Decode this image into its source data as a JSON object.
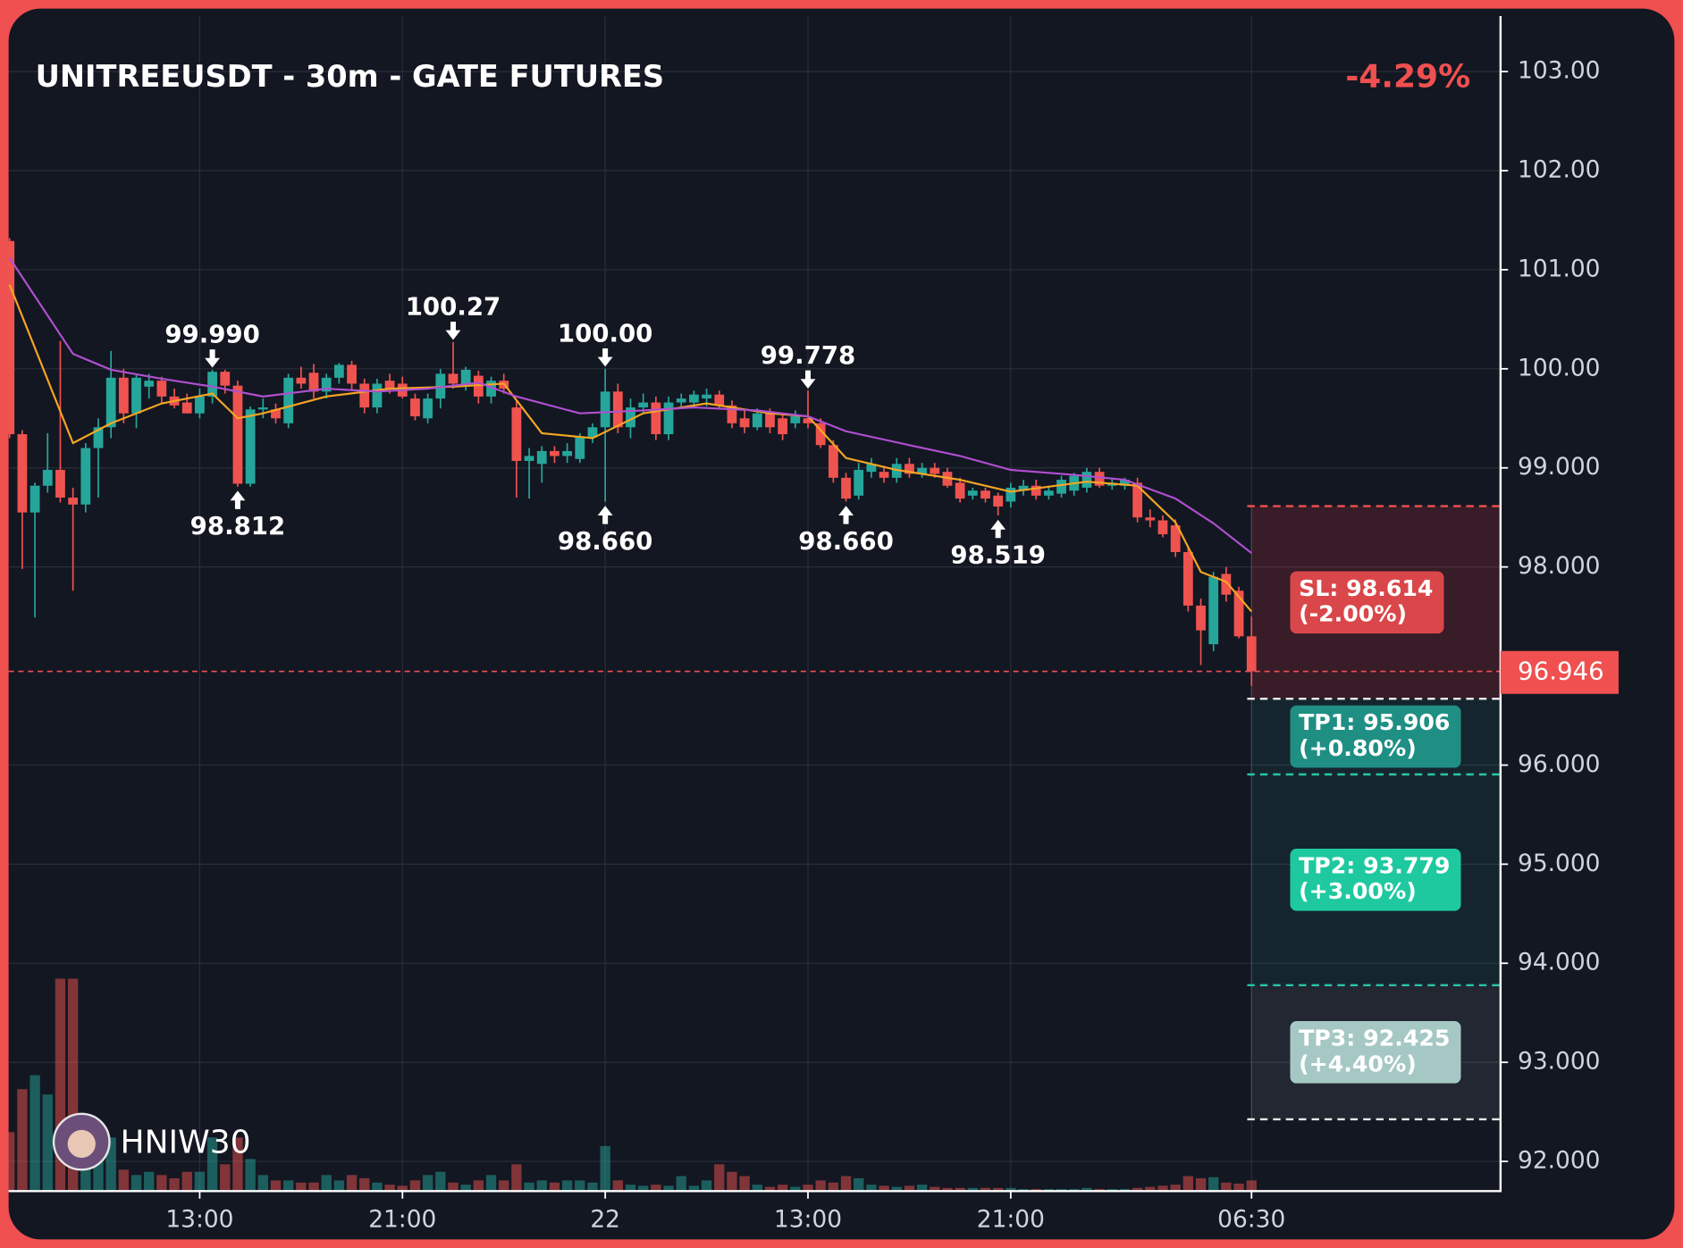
{
  "chart_data": {
    "type": "candlestick",
    "title": "UNITREEUSDT - 30m - GATE FUTURES",
    "change_label": "-4.29%",
    "watermark": "HNIW30",
    "up_color": "#26a69a",
    "down_color": "#ef5350",
    "open": [
      101.29,
      99.34,
      98.55,
      98.82,
      98.98,
      98.7,
      98.63,
      99.2,
      99.41,
      99.91,
      99.55,
      99.82,
      99.88,
      99.72,
      99.66,
      99.55,
      99.72,
      99.97,
      99.83,
      98.84,
      99.59,
      99.59,
      99.45,
      99.91,
      99.96,
      99.77,
      99.91,
      100.04,
      99.85,
      99.61,
      99.88,
      99.85,
      99.7,
      99.5,
      99.7,
      99.95,
      99.85,
      99.93,
      99.72,
      99.88,
      99.61,
      99.07,
      99.04,
      99.17,
      99.12,
      99.09,
      99.31,
      99.41,
      99.77,
      99.41,
      99.61,
      99.66,
      99.34,
      99.66,
      99.66,
      99.7,
      99.74,
      99.63,
      99.5,
      99.41,
      99.55,
      99.5,
      99.45,
      99.5,
      99.45,
      99.23,
      98.9,
      98.72,
      98.96,
      98.96,
      98.9,
      99.04,
      98.94,
      99.0,
      98.96,
      98.85,
      98.72,
      98.77,
      98.72,
      98.66,
      98.77,
      98.82,
      98.72,
      98.74,
      98.77,
      98.8,
      98.96,
      98.82,
      98.82,
      98.85,
      98.5,
      98.47,
      98.42,
      98.15,
      97.61,
      97.22,
      97.93,
      97.76,
      97.3
    ],
    "high": [
      101.32,
      99.38,
      98.85,
      99.35,
      100.28,
      98.8,
      99.25,
      99.5,
      100.18,
      100.0,
      99.95,
      99.95,
      99.92,
      99.8,
      99.75,
      99.8,
      99.99,
      99.99,
      99.88,
      99.62,
      99.7,
      99.65,
      99.95,
      100.02,
      100.05,
      99.95,
      100.06,
      100.08,
      99.9,
      99.9,
      99.95,
      99.92,
      99.75,
      99.75,
      100.0,
      100.27,
      100.02,
      99.98,
      99.92,
      99.95,
      99.68,
      99.2,
      99.22,
      99.22,
      99.25,
      99.35,
      99.45,
      100.0,
      99.85,
      99.7,
      99.75,
      99.72,
      99.72,
      99.75,
      99.78,
      99.8,
      99.78,
      99.68,
      99.58,
      99.6,
      99.6,
      99.55,
      99.58,
      99.78,
      99.5,
      99.28,
      98.95,
      99.05,
      99.1,
      99.02,
      99.1,
      99.1,
      99.05,
      99.05,
      99.0,
      98.9,
      98.8,
      98.8,
      98.75,
      98.85,
      98.88,
      98.88,
      98.82,
      98.92,
      98.95,
      99.0,
      99.0,
      98.9,
      98.9,
      98.9,
      98.58,
      98.52,
      98.48,
      98.2,
      97.68,
      97.95,
      98.0,
      97.8,
      97.5
    ],
    "low": [
      99.3,
      97.98,
      97.49,
      98.75,
      98.65,
      97.76,
      98.55,
      98.7,
      99.3,
      99.45,
      99.4,
      99.7,
      99.65,
      99.6,
      99.55,
      99.5,
      99.65,
      99.75,
      98.81,
      98.81,
      99.5,
      99.45,
      99.4,
      99.8,
      99.7,
      99.7,
      99.85,
      99.78,
      99.55,
      99.55,
      99.75,
      99.7,
      99.48,
      99.45,
      99.6,
      99.8,
      99.78,
      99.65,
      99.65,
      99.75,
      98.7,
      98.69,
      98.85,
      99.05,
      99.05,
      99.05,
      99.25,
      98.66,
      99.35,
      99.3,
      99.55,
      99.28,
      99.28,
      99.6,
      99.6,
      99.62,
      99.6,
      99.4,
      99.35,
      99.38,
      99.35,
      99.28,
      99.4,
      99.4,
      99.2,
      98.85,
      98.66,
      98.68,
      98.9,
      98.85,
      98.85,
      98.9,
      98.9,
      98.9,
      98.8,
      98.65,
      98.68,
      98.65,
      98.52,
      98.6,
      98.72,
      98.68,
      98.68,
      98.7,
      98.72,
      98.75,
      98.8,
      98.78,
      98.78,
      98.45,
      98.4,
      98.3,
      98.1,
      97.55,
      97.01,
      97.15,
      97.65,
      97.28,
      96.8
    ],
    "close": [
      99.34,
      98.55,
      98.82,
      98.98,
      98.7,
      98.63,
      99.2,
      99.41,
      99.91,
      99.55,
      99.91,
      99.88,
      99.72,
      99.63,
      99.55,
      99.72,
      99.97,
      99.83,
      98.84,
      99.59,
      99.61,
      99.5,
      99.91,
      99.85,
      99.77,
      99.91,
      100.04,
      99.85,
      99.61,
      99.85,
      99.8,
      99.72,
      99.52,
      99.7,
      99.95,
      99.85,
      99.99,
      99.72,
      99.88,
      99.8,
      99.07,
      99.12,
      99.17,
      99.12,
      99.17,
      99.31,
      99.41,
      99.77,
      99.41,
      99.61,
      99.66,
      99.34,
      99.66,
      99.7,
      99.74,
      99.74,
      99.63,
      99.45,
      99.41,
      99.55,
      99.41,
      99.34,
      99.52,
      99.45,
      99.23,
      98.9,
      98.69,
      98.98,
      99.04,
      98.9,
      99.04,
      98.94,
      99.0,
      98.94,
      98.82,
      98.69,
      98.77,
      98.69,
      98.61,
      98.8,
      98.82,
      98.72,
      98.77,
      98.88,
      98.92,
      98.96,
      98.82,
      98.85,
      98.88,
      98.5,
      98.47,
      98.33,
      98.15,
      97.61,
      97.36,
      97.9,
      97.72,
      97.3,
      96.946
    ],
    "volume": {
      "ylim": [
        0,
        250
      ],
      "values": [
        55,
        95,
        108,
        90,
        198,
        198,
        60,
        48,
        50,
        20,
        15,
        18,
        15,
        12,
        18,
        18,
        50,
        25,
        50,
        30,
        15,
        10,
        10,
        8,
        8,
        15,
        10,
        15,
        12,
        8,
        6,
        5,
        10,
        15,
        18,
        8,
        6,
        10,
        15,
        10,
        25,
        8,
        10,
        8,
        10,
        10,
        8,
        42,
        10,
        6,
        5,
        6,
        5,
        14,
        5,
        10,
        25,
        18,
        14,
        6,
        4,
        6,
        4,
        6,
        10,
        8,
        14,
        12,
        6,
        5,
        4,
        5,
        6,
        4,
        3,
        3,
        3,
        3,
        3,
        3,
        2,
        2,
        2,
        2,
        2,
        3,
        2,
        2,
        2,
        3,
        4,
        5,
        6,
        14,
        12,
        13,
        8,
        7,
        10
      ]
    },
    "lines": [
      {
        "color": "#f5a623",
        "x": [
          0,
          5,
          8,
          12,
          16,
          18,
          20,
          25,
          30,
          35,
          39,
          42,
          46,
          50,
          55,
          60,
          63,
          66,
          70,
          75,
          79,
          85,
          89,
          92,
          94,
          96,
          98
        ],
        "values": [
          100.85,
          99.25,
          99.45,
          99.65,
          99.75,
          99.5,
          99.55,
          99.72,
          99.8,
          99.82,
          99.85,
          99.35,
          99.3,
          99.55,
          99.65,
          99.55,
          99.52,
          99.1,
          98.98,
          98.88,
          98.76,
          98.86,
          98.82,
          98.45,
          97.95,
          97.85,
          97.55
        ]
      },
      {
        "color": "#b04fd0",
        "x": [
          0,
          5,
          8,
          12,
          16,
          20,
          25,
          29,
          33,
          37,
          40,
          45,
          50,
          54,
          59,
          63,
          66,
          71,
          75,
          79,
          84,
          88,
          92,
          95,
          98
        ],
        "values": [
          101.12,
          100.15,
          99.99,
          99.9,
          99.82,
          99.72,
          99.8,
          99.77,
          99.8,
          99.86,
          99.72,
          99.55,
          99.58,
          99.61,
          99.58,
          99.52,
          99.37,
          99.23,
          99.12,
          98.98,
          98.93,
          98.88,
          98.69,
          98.44,
          98.14
        ]
      }
    ],
    "xlim": [
      -0.08,
      117.65
    ],
    "xticks": [
      {
        "value": 15,
        "label": "13:00"
      },
      {
        "value": 31,
        "label": "21:00"
      },
      {
        "value": 47,
        "label": "22"
      },
      {
        "value": 63,
        "label": "13:00"
      },
      {
        "value": 79,
        "label": "21:00"
      },
      {
        "value": 98,
        "label": "06:30"
      }
    ],
    "ylim": [
      91.7,
      103.56
    ],
    "yticks": [
      {
        "value": 103,
        "label": "103.00"
      },
      {
        "value": 102,
        "label": "102.00"
      },
      {
        "value": 101,
        "label": "101.00"
      },
      {
        "value": 100,
        "label": "100.00"
      },
      {
        "value": 99,
        "label": "99.000"
      },
      {
        "value": 98,
        "label": "98.000"
      },
      {
        "value": 96,
        "label": "96.000"
      },
      {
        "value": 95,
        "label": "95.000"
      },
      {
        "value": 94,
        "label": "94.000"
      },
      {
        "value": 93,
        "label": "93.000"
      },
      {
        "value": 92,
        "label": "92.000"
      }
    ],
    "grid": true,
    "annotations": [
      {
        "text": "99.990",
        "x": 16,
        "y": 99.99,
        "position": "above"
      },
      {
        "text": "98.812",
        "x": 18,
        "y": 98.812,
        "position": "below"
      },
      {
        "text": "100.27",
        "x": 35,
        "y": 100.27,
        "position": "above"
      },
      {
        "text": "100.00",
        "x": 47,
        "y": 100,
        "position": "above"
      },
      {
        "text": "98.660",
        "x": 47,
        "y": 98.66,
        "position": "below"
      },
      {
        "text": "99.778",
        "x": 63,
        "y": 99.778,
        "position": "above"
      },
      {
        "text": "98.660",
        "x": 66,
        "y": 98.66,
        "position": "below"
      },
      {
        "text": "98.519",
        "x": 78,
        "y": 98.519,
        "position": "below"
      }
    ],
    "current_price": 96.946,
    "levels": {
      "zone_top": 96.67,
      "sl": {
        "price": 98.614,
        "label": [
          "SL: 98.614",
          "(-2.00%)"
        ],
        "color": "#d9474a",
        "line_color": "#f05050"
      },
      "tp": [
        {
          "price": 95.906,
          "label": [
            "TP1: 95.906",
            "(+0.80%)"
          ],
          "color": "#1f8f84",
          "line_color": "#26c6a6"
        },
        {
          "price": 93.779,
          "label": [
            "TP2: 93.779",
            "(+3.00%)"
          ],
          "color": "#1fc9a0",
          "line_color": "#26c6a6"
        },
        {
          "price": 92.425,
          "label": [
            "TP3: 92.425",
            "(+4.40%)"
          ],
          "color": "#a6c8c4",
          "line_color": "#e8e8e8"
        }
      ]
    }
  }
}
